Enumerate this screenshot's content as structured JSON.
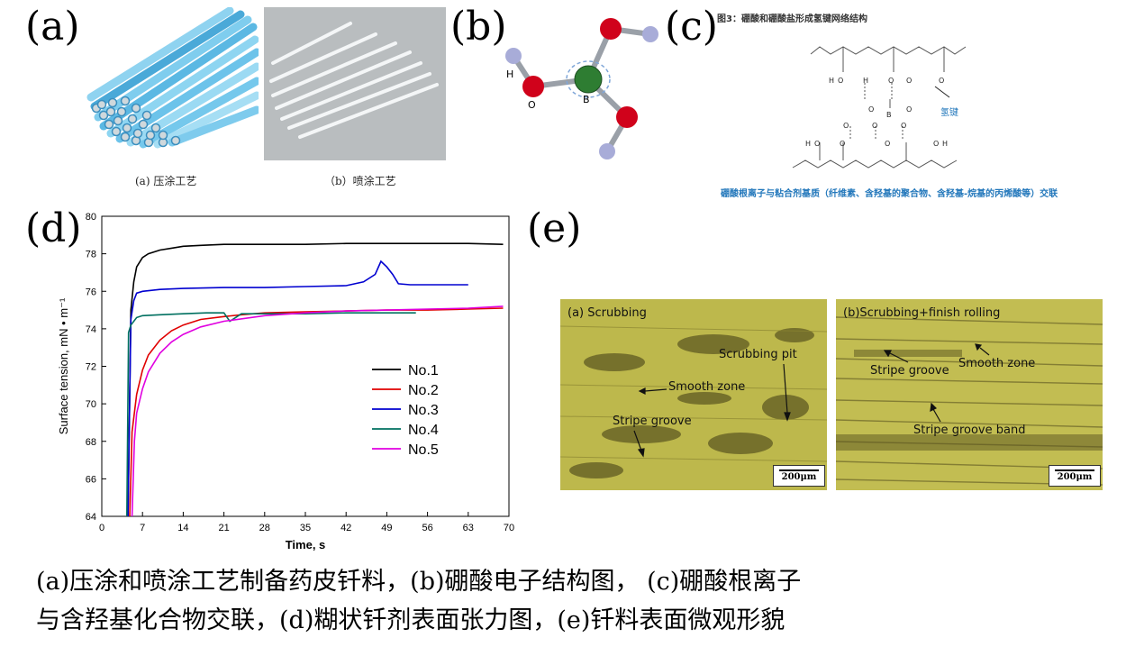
{
  "panels": {
    "a": {
      "label": "(a)",
      "sub_a": "(a) 压涂工艺",
      "sub_b": "（b）喷涂工艺"
    },
    "b": {
      "label": "(b)",
      "atom_h": "H",
      "atom_o": "O",
      "atom_b": "B"
    },
    "c": {
      "label": "(c)",
      "title": "图3：硼酸和硼酸盐形成氢键网络结构",
      "annotation": "氢键",
      "footer": "硼酸根离子与粘合剂基质（纤维素、含羟基的聚合物、含羟基-烷基的丙烯酸等）交联",
      "atom_h": "H",
      "atom_o": "O",
      "atom_b": "B"
    },
    "d": {
      "label": "(d)"
    },
    "e": {
      "label": "(e)",
      "left": {
        "title": "(a) Scrubbing",
        "labels": [
          "Scrubbing pit",
          "Smooth zone",
          "Stripe groove"
        ],
        "scale": "200μm"
      },
      "right": {
        "title": "(b)Scrubbing+finish rolling",
        "labels": [
          "Stripe groove",
          "Smooth zone",
          "Stripe groove band"
        ],
        "scale": "200μm"
      }
    }
  },
  "chart_data": {
    "type": "line",
    "title": "",
    "xlabel": "Time, s",
    "ylabel": "Surface tension, mN • m⁻¹",
    "xlim": [
      0,
      70
    ],
    "ylim": [
      64,
      80
    ],
    "xticks": [
      0,
      7,
      14,
      21,
      28,
      35,
      42,
      49,
      56,
      63,
      70
    ],
    "yticks": [
      64,
      66,
      68,
      70,
      72,
      74,
      76,
      78,
      80
    ],
    "legend_position": "right-middle",
    "series": [
      {
        "name": "No.1",
        "color": "#000000",
        "x": [
          4.5,
          5,
          5.5,
          6,
          7,
          8,
          10,
          12,
          14,
          17,
          21,
          28,
          35,
          42,
          49,
          56,
          63,
          69
        ],
        "y": [
          64,
          75.0,
          76.5,
          77.3,
          77.8,
          78.0,
          78.2,
          78.3,
          78.4,
          78.45,
          78.5,
          78.5,
          78.5,
          78.55,
          78.55,
          78.55,
          78.55,
          78.5
        ]
      },
      {
        "name": "No.2",
        "color": "#e00000",
        "x": [
          4.8,
          5.2,
          6,
          7,
          8,
          10,
          12,
          14,
          17,
          21,
          24,
          28,
          35,
          42,
          49,
          56,
          63,
          69
        ],
        "y": [
          64,
          68.5,
          70.5,
          71.8,
          72.6,
          73.4,
          73.9,
          74.2,
          74.5,
          74.65,
          74.75,
          74.85,
          74.9,
          74.95,
          75.0,
          75.0,
          75.05,
          75.1
        ]
      },
      {
        "name": "No.3",
        "color": "#0000d0",
        "x": [
          4.5,
          5,
          5.5,
          6,
          7,
          10,
          14,
          21,
          28,
          35,
          42,
          45,
          47,
          48,
          49,
          50,
          51,
          53,
          56,
          63
        ],
        "y": [
          64,
          74.5,
          75.5,
          75.9,
          76.0,
          76.1,
          76.15,
          76.2,
          76.2,
          76.25,
          76.3,
          76.5,
          76.9,
          77.6,
          77.3,
          76.9,
          76.4,
          76.35,
          76.35,
          76.35
        ]
      },
      {
        "name": "No.4",
        "color": "#007060",
        "x": [
          4.3,
          4.6,
          5,
          6,
          7,
          10,
          14,
          18,
          21,
          22,
          23,
          24,
          28,
          35,
          42,
          49,
          54
        ],
        "y": [
          64,
          73.8,
          74.2,
          74.6,
          74.7,
          74.75,
          74.8,
          74.85,
          74.85,
          74.4,
          74.6,
          74.8,
          74.8,
          74.8,
          74.85,
          74.85,
          74.85
        ]
      },
      {
        "name": "No.5",
        "color": "#e000e0",
        "x": [
          5.2,
          5.6,
          6,
          7,
          8,
          10,
          12,
          14,
          17,
          21,
          28,
          35,
          42,
          49,
          56,
          63,
          69
        ],
        "y": [
          64,
          68.0,
          69.5,
          70.8,
          71.7,
          72.7,
          73.3,
          73.7,
          74.1,
          74.4,
          74.7,
          74.85,
          74.95,
          75.0,
          75.05,
          75.1,
          75.2
        ]
      }
    ]
  },
  "caption": {
    "line1": "(a)压涂和喷涂工艺制备药皮钎料，(b)硼酸电子结构图， (c)硼酸根离子",
    "line2": "与含羟基化合物交联，(d)糊状钎剂表面张力图，(e)钎料表面微观形貌"
  },
  "colors": {
    "rod_blue": "#6fc4e8",
    "caption_blue": "#2277bb",
    "micro_bg": "#b8b840"
  }
}
